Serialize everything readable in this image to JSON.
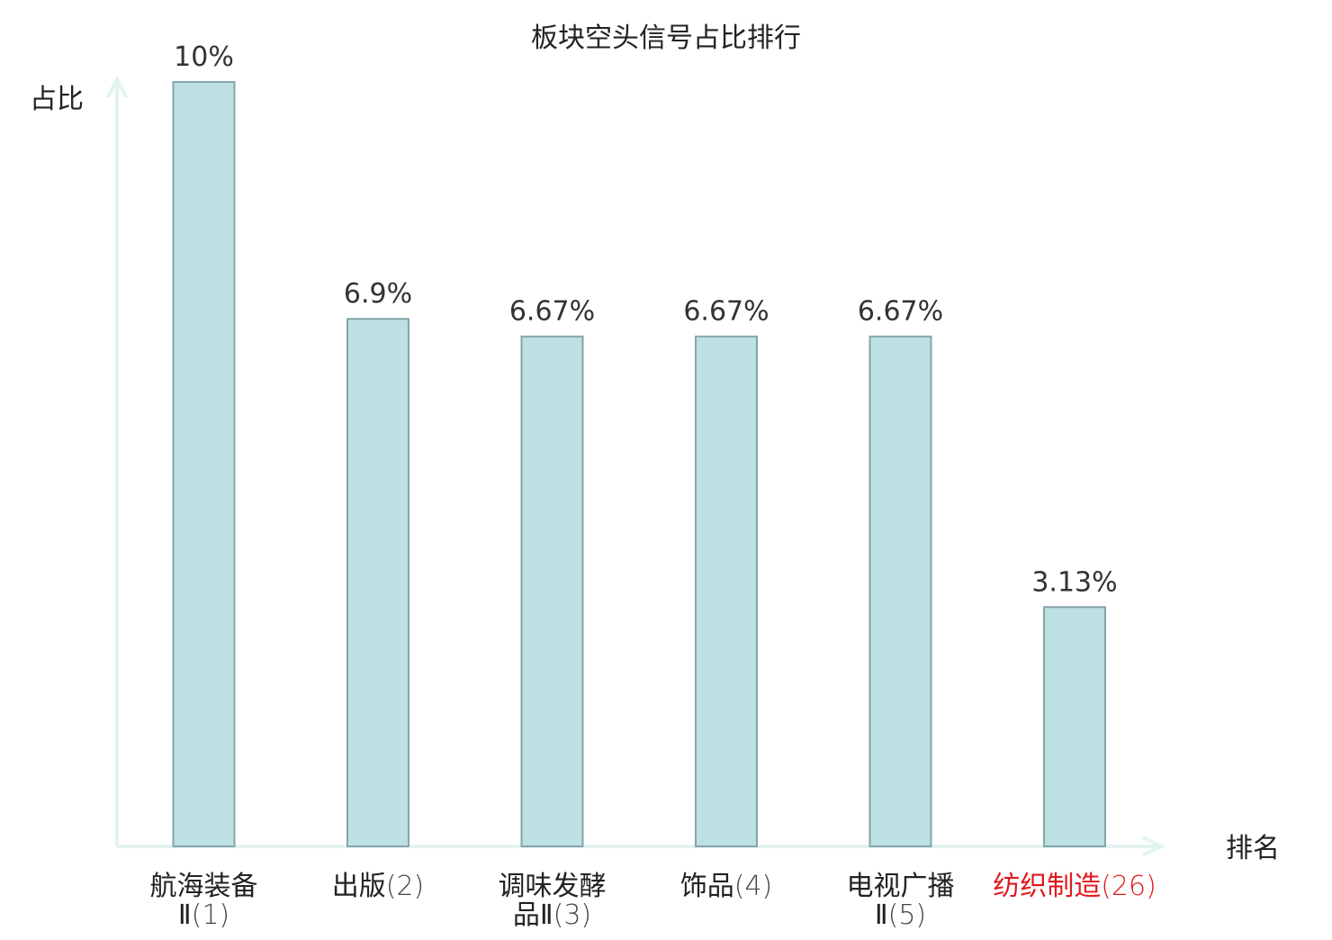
{
  "chart_data": {
    "type": "bar",
    "title": "板块空头信号占比排行",
    "xlabel": "排名",
    "ylabel": "占比",
    "ylim": [
      0,
      10
    ],
    "grid": false,
    "legend": "none",
    "colors": {
      "bar_fill": "#bde0e3",
      "bar_stroke": "#85a5aa",
      "axis": "#e3f3f1",
      "text": "#222222",
      "value_label": "#333333",
      "highlight": "#e0191c"
    },
    "categories": [
      {
        "name": "航海装备",
        "name_line2": "Ⅱ",
        "rank": "(1)",
        "highlight": false
      },
      {
        "name": "出版",
        "name_line2": "",
        "rank": "(2)",
        "highlight": false
      },
      {
        "name": "调味发酵",
        "name_line2": "品Ⅱ",
        "rank": "(3)",
        "highlight": false
      },
      {
        "name": "饰品",
        "name_line2": "",
        "rank": "(4)",
        "highlight": false
      },
      {
        "name": "电视广播",
        "name_line2": "Ⅱ",
        "rank": "(5)",
        "highlight": false
      },
      {
        "name": "纺织制造",
        "name_line2": "",
        "rank": "(26)",
        "highlight": true
      }
    ],
    "values": [
      10,
      6.9,
      6.67,
      6.67,
      6.67,
      3.13
    ],
    "value_labels": [
      "10%",
      "6.9%",
      "6.67%",
      "6.67%",
      "6.67%",
      "3.13%"
    ]
  }
}
